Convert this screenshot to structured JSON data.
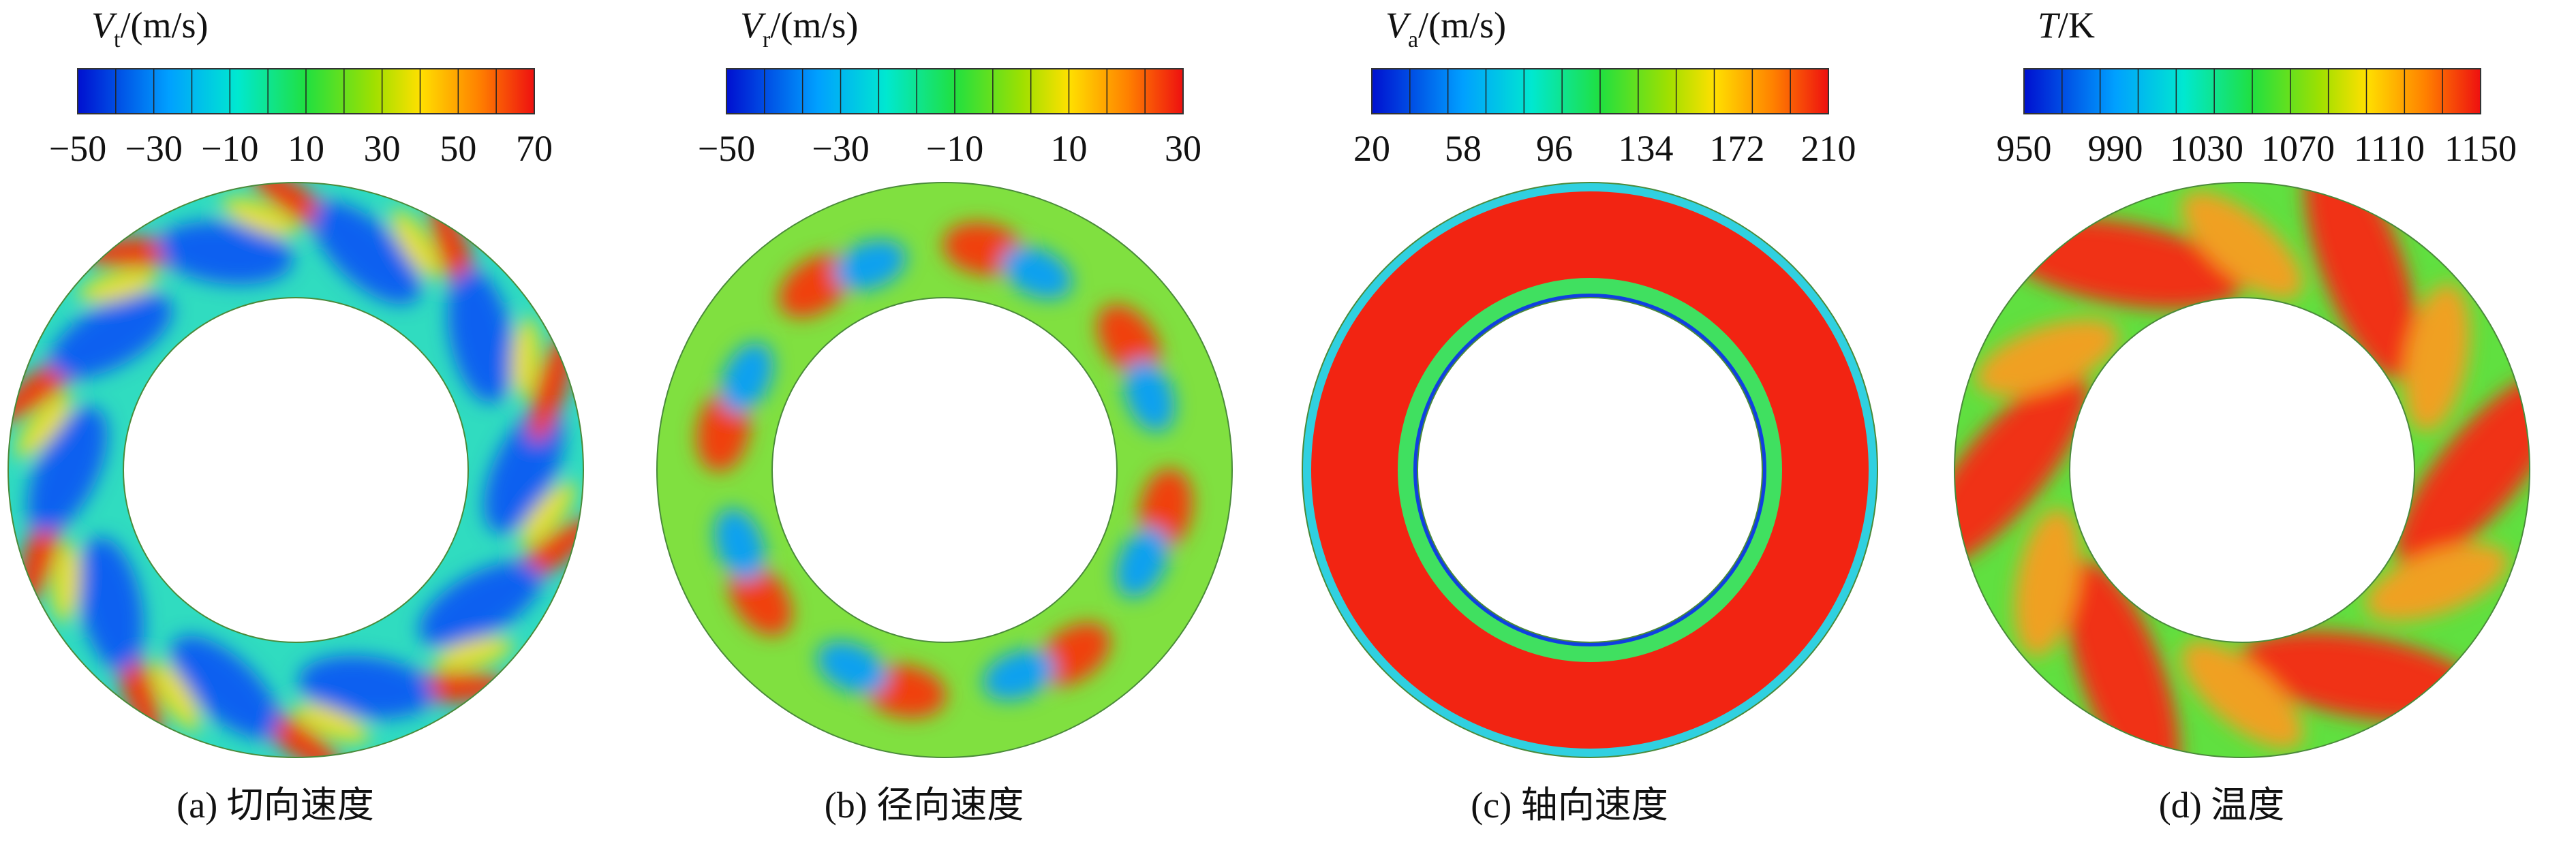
{
  "panels": [
    {
      "symbol": "V",
      "sub": "t",
      "unit": "/(m/s)",
      "ticks": [
        "−50",
        "−30",
        "−10",
        "10",
        "30",
        "50",
        "70"
      ],
      "caption": "(a) 切向速度"
    },
    {
      "symbol": "V",
      "sub": "r",
      "unit": "/(m/s)",
      "ticks": [
        "−50",
        "−30",
        "−10",
        "10",
        "30"
      ],
      "caption": "(b) 径向速度"
    },
    {
      "symbol": "V",
      "sub": "a",
      "unit": "/(m/s)",
      "ticks": [
        "20",
        "58",
        "96",
        "134",
        "172",
        "210"
      ],
      "caption": "(c) 轴向速度"
    },
    {
      "symbol": "T",
      "sub": null,
      "unit": "/K",
      "ticks": [
        "950",
        "990",
        "1030",
        "1070",
        "1110",
        "1150"
      ],
      "caption": "(d) 温度"
    }
  ]
}
